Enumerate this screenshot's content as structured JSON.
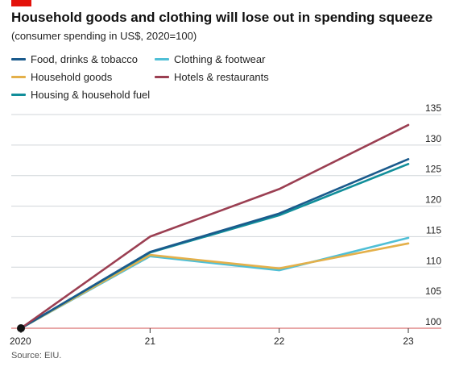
{
  "header": {
    "title": "Household goods and clothing will lose out in spending squeeze",
    "subtitle": "(consumer spending in US$, 2020=100)",
    "accent_color": "#e3120b"
  },
  "footer": {
    "source": "Source: EIU."
  },
  "chart_data": {
    "type": "line",
    "x": [
      "2020",
      "21",
      "22",
      "23"
    ],
    "ylim": [
      100,
      135
    ],
    "yticks": [
      100,
      105,
      110,
      115,
      120,
      125,
      130,
      135
    ],
    "grid": true,
    "legend_placement": "top",
    "series": [
      {
        "name": "Food, drinks & tobacco",
        "color": "#1a5a8c",
        "values": [
          100,
          112.5,
          118.8,
          127.7
        ]
      },
      {
        "name": "Household goods",
        "color": "#e4b04a",
        "values": [
          100,
          112.0,
          109.8,
          113.9
        ]
      },
      {
        "name": "Housing & household fuel",
        "color": "#118e9a",
        "values": [
          100,
          112.4,
          118.5,
          126.9
        ]
      },
      {
        "name": "Clothing & footwear",
        "color": "#4fbfd6",
        "values": [
          100,
          111.8,
          109.5,
          114.8
        ]
      },
      {
        "name": "Hotels & restaurants",
        "color": "#9b3f52",
        "values": [
          100,
          115.0,
          122.8,
          133.3
        ]
      }
    ]
  }
}
